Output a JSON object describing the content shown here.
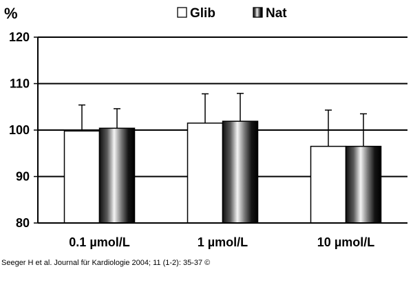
{
  "chart_data": {
    "type": "bar",
    "ylabel": "%",
    "ylim": [
      80,
      120
    ],
    "yticks": [
      80,
      90,
      100,
      110,
      120
    ],
    "grid": true,
    "legend_position": "top",
    "categories": [
      "0.1 µmol/L",
      "1 µmol/L",
      "10 µmol/L"
    ],
    "series": [
      {
        "name": "Glib",
        "values": [
          99.8,
          101.5,
          96.5
        ],
        "errors": [
          5.6,
          6.3,
          7.8
        ],
        "style": "white"
      },
      {
        "name": "Nat",
        "values": [
          100.4,
          101.9,
          96.5
        ],
        "errors": [
          4.2,
          6.0,
          7.0
        ],
        "style": "gradient"
      }
    ]
  },
  "citation": "Seeger H et al. Journal für Kardiologie 2004; 11 (1-2): 35-37 ©"
}
